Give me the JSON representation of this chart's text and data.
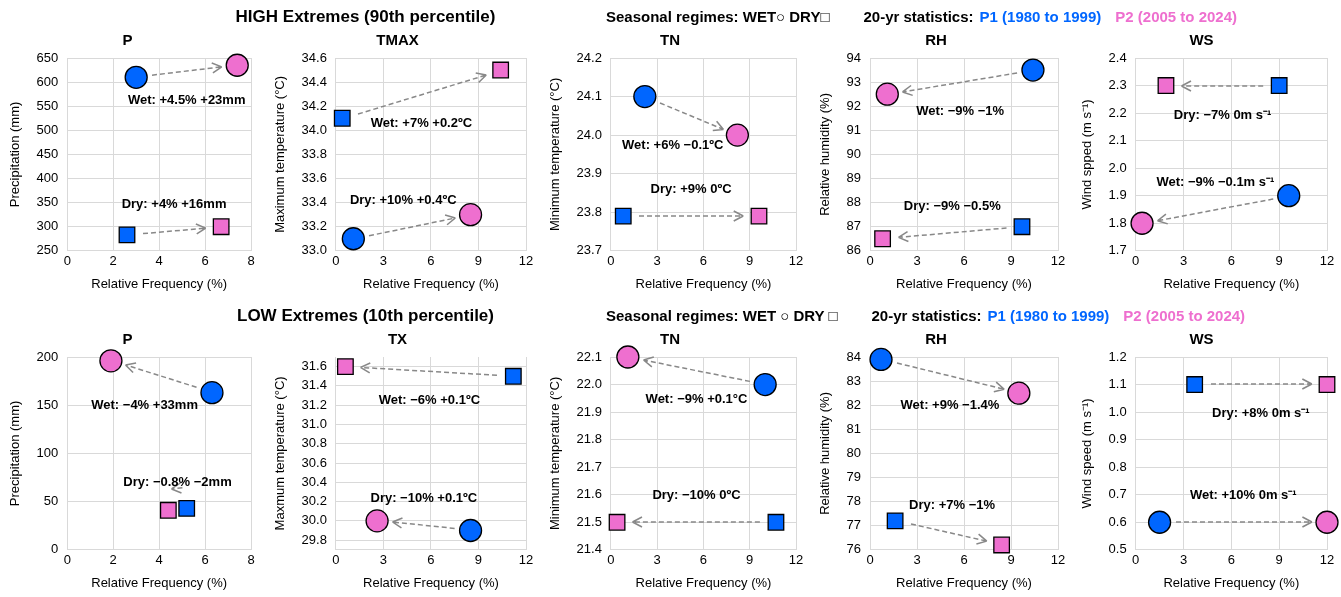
{
  "chart_data": [
    {
      "type": "scatter",
      "title": "P",
      "xlabel": "Relative Frequency (%)",
      "ylabel": "Precipitation (mm)",
      "xlim": [
        0,
        8
      ],
      "xticks": [
        0,
        2,
        4,
        6,
        8
      ],
      "ylim": [
        250,
        650
      ],
      "yticks": [
        250,
        300,
        350,
        400,
        450,
        500,
        550,
        600,
        650
      ],
      "grid": true,
      "series": [
        {
          "color": "#0066ff",
          "marker": "circle",
          "x": [
            3.0
          ],
          "values": [
            610
          ]
        },
        {
          "color": "#ee6fcf",
          "marker": "circle",
          "x": [
            7.4
          ],
          "values": [
            635
          ]
        },
        {
          "color": "#0066ff",
          "marker": "square",
          "x": [
            2.6
          ],
          "values": [
            283
          ]
        },
        {
          "color": "#ee6fcf",
          "marker": "square",
          "x": [
            6.7
          ],
          "values": [
            300
          ]
        }
      ],
      "annotations": [
        "Wet: +4.5%  +23mm",
        "Dry: +4%  +16mm"
      ]
    },
    {
      "type": "scatter",
      "title": "TMAX",
      "xlabel": "Relative Frequency (%)",
      "ylabel": "Maximum temperature (°C)",
      "xlim": [
        0,
        12
      ],
      "xticks": [
        0,
        3,
        6,
        9,
        12
      ],
      "ylim": [
        33,
        34.6
      ],
      "yticks": [
        {
          "value": 33,
          "label": "33.0"
        },
        33.2,
        33.4,
        33.6,
        33.8,
        {
          "value": 34,
          "label": "34.0"
        },
        34.2,
        34.4,
        34.6
      ],
      "grid": true,
      "series": [
        {
          "color": "#0066ff",
          "marker": "square",
          "x": [
            0.4
          ],
          "values": [
            34.1
          ]
        },
        {
          "color": "#ee6fcf",
          "marker": "square",
          "x": [
            10.4
          ],
          "values": [
            34.5
          ]
        },
        {
          "color": "#0066ff",
          "marker": "circle",
          "x": [
            1.1
          ],
          "values": [
            33.1
          ]
        },
        {
          "color": "#ee6fcf",
          "marker": "circle",
          "x": [
            8.5
          ],
          "values": [
            33.3
          ]
        }
      ],
      "annotations": [
        "HIGH Extremes (90th percentile)",
        "Wet: +7%  +0.2ºC",
        "Dry: +10%  +0.4ºC"
      ]
    },
    {
      "type": "scatter",
      "title": "TN",
      "xlabel": "Relative Frequency (%)",
      "ylabel": "Minimum temperature (°C)",
      "xlim": [
        0,
        12
      ],
      "xticks": [
        0,
        3,
        6,
        9,
        12
      ],
      "ylim": [
        23.7,
        24.2
      ],
      "yticks": [
        23.7,
        23.8,
        23.9,
        {
          "value": 24,
          "label": "24.0"
        },
        24.1,
        24.2
      ],
      "grid": true,
      "legend": "top",
      "legend_title": "20-yr statistics:",
      "series": [
        {
          "name": "P1 (1980 to 1999)",
          "color": "#0066ff",
          "marker": "circle",
          "x": [
            2.2
          ],
          "values": [
            24.1
          ]
        },
        {
          "name": "P2 (2005 to 2024)",
          "color": "#ee6fcf",
          "marker": "circle",
          "x": [
            8.2
          ],
          "values": [
            24.0
          ]
        },
        {
          "color": "#0066ff",
          "marker": "square",
          "x": [
            0.8
          ],
          "values": [
            23.79
          ]
        },
        {
          "color": "#ee6fcf",
          "marker": "square",
          "x": [
            9.6
          ],
          "values": [
            23.79
          ]
        }
      ],
      "annotations": [
        "Seasonal regimes:  WET○      DRY□",
        "Wet: +6%  −0.1ºC",
        "Dry: +9%  0ºC"
      ]
    },
    {
      "type": "scatter",
      "title": "RH",
      "xlabel": "Relative Frequency (%)",
      "ylabel": "Relative humidity (%)",
      "xlim": [
        0,
        12
      ],
      "xticks": [
        0,
        3,
        6,
        9,
        12
      ],
      "ylim": [
        86,
        94
      ],
      "yticks": [
        86,
        87,
        88,
        89,
        90,
        91,
        92,
        93,
        94
      ],
      "grid": true,
      "series": [
        {
          "color": "#0066ff",
          "marker": "circle",
          "x": [
            10.4
          ],
          "values": [
            93.5
          ]
        },
        {
          "color": "#ee6fcf",
          "marker": "circle",
          "x": [
            1.1
          ],
          "values": [
            92.5
          ]
        },
        {
          "color": "#0066ff",
          "marker": "square",
          "x": [
            9.7
          ],
          "values": [
            87.0
          ]
        },
        {
          "color": "#ee6fcf",
          "marker": "square",
          "x": [
            0.8
          ],
          "values": [
            86.5
          ]
        }
      ],
      "annotations": [
        "Wet: −9%  −1%",
        "Dry: −9%  −0.5%"
      ]
    },
    {
      "type": "scatter",
      "title": "WS",
      "xlabel": "Relative Frequency (%)",
      "ylabel": "Wind spped (m s⁻¹)",
      "xlim": [
        0,
        12
      ],
      "xticks": [
        0,
        3,
        6,
        9,
        12
      ],
      "ylim": [
        1.7,
        2.4
      ],
      "yticks": [
        1.7,
        1.8,
        1.9,
        {
          "value": 2,
          "label": "2.0"
        },
        2.1,
        2.2,
        2.3,
        2.4
      ],
      "grid": true,
      "series": [
        {
          "color": "#0066ff",
          "marker": "square",
          "x": [
            9.0
          ],
          "values": [
            2.3
          ]
        },
        {
          "color": "#ee6fcf",
          "marker": "square",
          "x": [
            1.9
          ],
          "values": [
            2.3
          ]
        },
        {
          "color": "#0066ff",
          "marker": "circle",
          "x": [
            9.6
          ],
          "values": [
            1.9
          ]
        },
        {
          "color": "#ee6fcf",
          "marker": "circle",
          "x": [
            0.4
          ],
          "values": [
            1.8
          ]
        }
      ],
      "annotations": [
        "Dry: −7%  0m s⁻¹",
        "Wet: −9%  −0.1m s⁻¹"
      ]
    },
    {
      "type": "scatter",
      "title": "P",
      "xlabel": "Relative Frequency (%)",
      "ylabel": "Precipitation (mm)",
      "xlim": [
        0,
        8
      ],
      "xticks": [
        0,
        2,
        4,
        6,
        8
      ],
      "ylim": [
        0,
        200
      ],
      "yticks": [
        0,
        50,
        100,
        150,
        200
      ],
      "grid": true,
      "series": [
        {
          "color": "#0066ff",
          "marker": "circle",
          "x": [
            6.3
          ],
          "values": [
            163
          ]
        },
        {
          "color": "#ee6fcf",
          "marker": "circle",
          "x": [
            1.9
          ],
          "values": [
            196
          ]
        },
        {
          "color": "#0066ff",
          "marker": "square",
          "x": [
            5.2
          ],
          "values": [
            43
          ]
        },
        {
          "color": "#ee6fcf",
          "marker": "square",
          "x": [
            4.4
          ],
          "values": [
            41
          ]
        }
      ],
      "annotations": [
        "Wet: −4%  +33mm",
        "Dry: −0.8%  −2mm"
      ]
    },
    {
      "type": "scatter",
      "title": "TX",
      "xlabel": "Relative Frequency (%)",
      "ylabel": "Maxmum temperature (°C)",
      "xlim": [
        0,
        12
      ],
      "xticks": [
        0,
        3,
        6,
        9,
        12
      ],
      "ylim": [
        29.7,
        31.7
      ],
      "yticks": [
        29.8,
        {
          "value": 30,
          "label": "30.0"
        },
        30.2,
        30.4,
        30.6,
        30.8,
        {
          "value": 31,
          "label": "31.0"
        },
        31.2,
        31.4,
        31.6
      ],
      "grid": true,
      "series": [
        {
          "color": "#0066ff",
          "marker": "square",
          "x": [
            11.2
          ],
          "values": [
            31.5
          ]
        },
        {
          "color": "#ee6fcf",
          "marker": "square",
          "x": [
            0.6
          ],
          "values": [
            31.6
          ]
        },
        {
          "color": "#0066ff",
          "marker": "circle",
          "x": [
            8.5
          ],
          "values": [
            29.9
          ]
        },
        {
          "color": "#ee6fcf",
          "marker": "circle",
          "x": [
            2.6
          ],
          "values": [
            30.0
          ]
        }
      ],
      "annotations": [
        "LOW Extremes (10th percentile)",
        "Wet: −6%  +0.1ºC",
        "Dry: −10%  +0.1ºC"
      ]
    },
    {
      "type": "scatter",
      "title": "TN",
      "xlabel": "Relative Frequency (%)",
      "ylabel": "Minimum temperature (°C)",
      "xlim": [
        0,
        12
      ],
      "xticks": [
        0,
        3,
        6,
        9,
        12
      ],
      "ylim": [
        21.4,
        22.1
      ],
      "yticks": [
        21.4,
        21.5,
        21.6,
        21.7,
        21.8,
        21.9,
        {
          "value": 22,
          "label": "22.0"
        },
        22.1
      ],
      "grid": true,
      "legend": "top",
      "legend_title": "20-yr statistics:",
      "series": [
        {
          "name": "P1 (1980 to 1999)",
          "color": "#0066ff",
          "marker": "circle",
          "x": [
            10.0
          ],
          "values": [
            22.0
          ]
        },
        {
          "name": "P2 (2005 to 2024)",
          "color": "#ee6fcf",
          "marker": "circle",
          "x": [
            1.1
          ],
          "values": [
            22.1
          ]
        },
        {
          "color": "#0066ff",
          "marker": "square",
          "x": [
            10.7
          ],
          "values": [
            21.5
          ]
        },
        {
          "color": "#ee6fcf",
          "marker": "square",
          "x": [
            0.4
          ],
          "values": [
            21.5
          ]
        }
      ],
      "annotations": [
        "Seasonal regimes:  WET ○      DRY □",
        "Wet: −9%  +0.1°C",
        "Dry: −10%  0ºC"
      ]
    },
    {
      "type": "scatter",
      "title": "RH",
      "xlabel": "Relative Frequency (%)",
      "ylabel": "Relative humidity (%)",
      "xlim": [
        0,
        12
      ],
      "xticks": [
        0,
        3,
        6,
        9,
        12
      ],
      "ylim": [
        76,
        84
      ],
      "yticks": [
        76,
        77,
        78,
        79,
        80,
        81,
        82,
        83,
        84
      ],
      "grid": true,
      "series": [
        {
          "color": "#0066ff",
          "marker": "circle",
          "x": [
            0.7
          ],
          "values": [
            83.9
          ]
        },
        {
          "color": "#ee6fcf",
          "marker": "circle",
          "x": [
            9.5
          ],
          "values": [
            82.5
          ]
        },
        {
          "color": "#0066ff",
          "marker": "square",
          "x": [
            1.6
          ],
          "values": [
            77.2
          ]
        },
        {
          "color": "#ee6fcf",
          "marker": "square",
          "x": [
            8.4
          ],
          "values": [
            76.2
          ]
        }
      ],
      "annotations": [
        "Wet: +9%  −1.4%",
        "Dry: +7%  −1%"
      ]
    },
    {
      "type": "scatter",
      "title": "WS",
      "xlabel": "Relative Frequency (%)",
      "ylabel": "Wind speed (m s⁻¹)",
      "xlim": [
        0,
        12
      ],
      "xticks": [
        0,
        3,
        6,
        9,
        12
      ],
      "ylim": [
        0.5,
        1.2
      ],
      "yticks": [
        0.5,
        0.6,
        0.7,
        0.8,
        0.9,
        {
          "value": 1,
          "label": "1.0"
        },
        1.1,
        1.2
      ],
      "grid": true,
      "series": [
        {
          "color": "#0066ff",
          "marker": "square",
          "x": [
            3.7
          ],
          "values": [
            1.1
          ]
        },
        {
          "color": "#ee6fcf",
          "marker": "square",
          "x": [
            12.0
          ],
          "values": [
            1.1
          ]
        },
        {
          "color": "#0066ff",
          "marker": "circle",
          "x": [
            1.5
          ],
          "values": [
            0.6
          ]
        },
        {
          "color": "#ee6fcf",
          "marker": "circle",
          "x": [
            12.0
          ],
          "values": [
            0.6
          ]
        }
      ],
      "annotations": [
        "Dry: +8%  0m s⁻¹",
        "Wet: +10%  0m s⁻¹"
      ]
    }
  ]
}
